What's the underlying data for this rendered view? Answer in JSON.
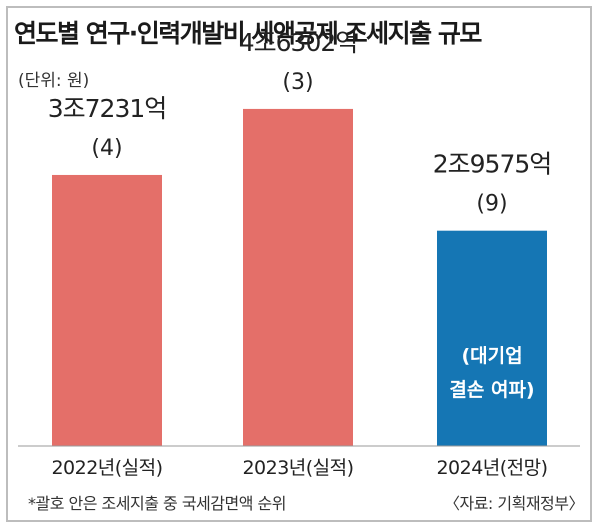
{
  "title": "연도별 연구·인력개발비 세액공제 조세지출 규모",
  "unit_label": "(단위: 원)",
  "footnote": "*괄호 안은 조세지출 중 국세감면액 순위",
  "source": "〈자료: 기획재정부〉",
  "colors": {
    "actual_bar": "#e46f69",
    "forecast_bar": "#1576b4",
    "forecast_text": "#ffffff"
  },
  "chart_data": {
    "type": "bar",
    "categories": [
      "2022년(실적)",
      "2023년(실적)",
      "2024년(전망)"
    ],
    "values": [
      37231,
      46302,
      29575
    ],
    "value_labels": [
      "3조7231억",
      "4조6302억",
      "2조9575억"
    ],
    "rank_labels": [
      "(4)",
      "(3)",
      "(9)"
    ],
    "value_unit": "억원",
    "annotations": [
      {
        "category": "2024년(전망)",
        "lines": [
          "(대기업",
          "결손 여파)"
        ]
      }
    ],
    "ylim": [
      0,
      50000
    ],
    "grid": false,
    "legend": "none"
  }
}
